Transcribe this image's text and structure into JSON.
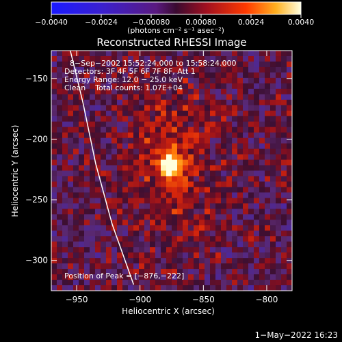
{
  "chart_data": {
    "type": "heatmap",
    "title": "Reconstructed RHESSI Image",
    "xlabel": "Heliocentric X (arcsec)",
    "ylabel": "Heliocentric Y (arcsec)",
    "xlim": [
      -970,
      -780
    ],
    "ylim": [
      -325,
      -127
    ],
    "x_ticks": [
      -950,
      -900,
      -850,
      -800
    ],
    "x_tick_labels": [
      "−950",
      "−900",
      "−850",
      "−800"
    ],
    "y_ticks": [
      -150,
      -200,
      -250,
      -300
    ],
    "y_tick_labels": [
      "−150",
      "−200",
      "−250",
      "−300"
    ],
    "colorbar": {
      "range": [
        -0.004,
        0.004
      ],
      "ticks": [
        -0.004,
        -0.0024,
        -0.0008,
        0.0008,
        0.0024,
        0.004
      ],
      "tick_labels": [
        "−0.0040",
        "−0.0024",
        "−0.00080",
        "0.00080",
        "0.0024",
        "0.0040"
      ],
      "units_label": "(photons cm⁻² s⁻¹ asec⁻²)"
    },
    "peak": {
      "x": -876,
      "y": -222
    },
    "limb_line": [
      [
        -955,
        -127
      ],
      [
        -945,
        -170
      ],
      [
        -935,
        -220
      ],
      [
        -922,
        -270
      ],
      [
        -905,
        -320
      ]
    ],
    "annotations": {
      "time_range": "8−Sep−2002 15:52:24.000 to 15:58:24.000",
      "detectors": "Detectors: 3F 4F 5F 6F 7F 8F, Att 1",
      "energy_range": "Energy Range: 12.0 − 25.0 keV",
      "clean_counts": "Clean    Total counts: 1.07E+04",
      "peak_label": "Position of Peak = [−876,−222]"
    }
  },
  "footer": {
    "timestamp": "1−May−2022 16:23"
  }
}
